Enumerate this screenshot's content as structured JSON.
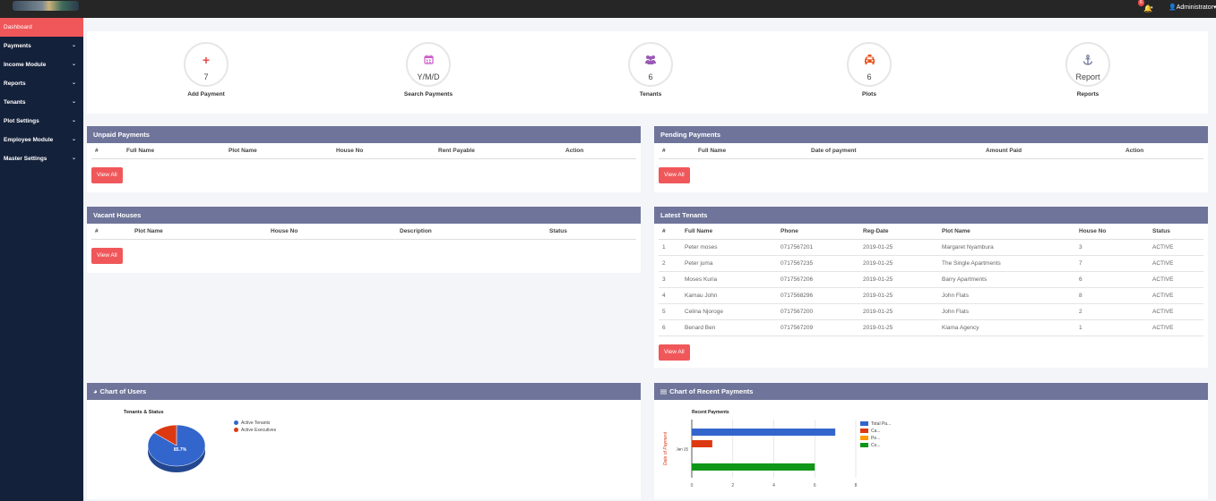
{
  "header": {
    "notif_count": "6",
    "notif_icon": "bell-icon",
    "user_label": "Administrator"
  },
  "sidebar": {
    "items": [
      {
        "label": "Dashboard",
        "active": true
      },
      {
        "label": "Payments"
      },
      {
        "label": "Income Module"
      },
      {
        "label": "Reports"
      },
      {
        "label": "Tenants"
      },
      {
        "label": "Plot Settings"
      },
      {
        "label": "Employee Module"
      },
      {
        "label": "Master Settings"
      }
    ]
  },
  "stats": [
    {
      "value": "7",
      "label": "Add Payment",
      "icon": "plus-icon",
      "color": "#e8494d"
    },
    {
      "value": "Y/M/D",
      "label": "Search Payments",
      "icon": "calendar-icon",
      "color": "#cc5cc9"
    },
    {
      "value": "6",
      "label": "Tenants",
      "icon": "users-icon",
      "color": "#9b59b6"
    },
    {
      "value": "6",
      "label": "Plots",
      "icon": "taxi-icon",
      "color": "#e8521a"
    },
    {
      "value": "Report",
      "label": "Reports",
      "icon": "anchor-icon",
      "color": "#6f759a"
    }
  ],
  "unpaid": {
    "title": "Unpaid Payments",
    "headers": [
      "#",
      "Full Name",
      "Plot Name",
      "House No",
      "Rent Payable",
      "Action"
    ],
    "view_all": "View All"
  },
  "pending": {
    "title": "Pending Payments",
    "headers": [
      "#",
      "Full Name",
      "Date of payment",
      "Amount Paid",
      "Action"
    ],
    "view_all": "View All"
  },
  "vacant": {
    "title": "Vacant Houses",
    "headers": [
      "#",
      "Plot Name",
      "House No",
      "Description",
      "Status"
    ],
    "view_all": "View All"
  },
  "latest": {
    "title": "Latest Tenants",
    "headers": [
      "#",
      "Full Name",
      "Phone",
      "Reg-Date",
      "Plot Name",
      "House No",
      "Status"
    ],
    "rows": [
      [
        "1",
        "Peter moses",
        "0717567201",
        "2019-01-25",
        "Margaret Nyambura",
        "3",
        "ACTIVE"
      ],
      [
        "2",
        "Peter juma",
        "0717567235",
        "2019-01-25",
        "The Single Apartments",
        "7",
        "ACTIVE"
      ],
      [
        "3",
        "Moses Kuria",
        "0717567206",
        "2019-01-25",
        "Barry Apartments",
        "6",
        "ACTIVE"
      ],
      [
        "4",
        "Kamau John",
        "0717568296",
        "2019-01-25",
        "John Flats",
        "8",
        "ACTIVE"
      ],
      [
        "5",
        "Celina Njoroge",
        "0717567200",
        "2019-01-25",
        "John Flats",
        "2",
        "ACTIVE"
      ],
      [
        "6",
        "Benard Ben",
        "0717567209",
        "2019-01-25",
        "Kiama Agency",
        "1",
        "ACTIVE"
      ]
    ],
    "view_all": "View All"
  },
  "users_chart": {
    "panel_title": "Chart of Users",
    "icon": "pie-icon"
  },
  "payments_chart": {
    "panel_title": "Chart of Recent Payments",
    "icon": "bar-chart-icon"
  },
  "chart_data": [
    {
      "type": "pie",
      "title": "Tenants & Status",
      "labels": [
        "Active Tenants",
        "Active Executives"
      ],
      "values": [
        85.7,
        14.3
      ],
      "colors": [
        "#3366cc",
        "#dc3912"
      ],
      "slice_label": "85.7%",
      "legend": "right"
    },
    {
      "type": "bar",
      "orientation": "horizontal",
      "title": "Recent Payments",
      "ylabel": "Date of Payment",
      "categories": [
        "Jan 25"
      ],
      "series": [
        {
          "name": "Total Pa...",
          "values": [
            7
          ],
          "color": "#3366cc"
        },
        {
          "name": "Ca...",
          "values": [
            1
          ],
          "color": "#dc3912"
        },
        {
          "name": "Pe...",
          "values": [
            0
          ],
          "color": "#ff9900"
        },
        {
          "name": "Co...",
          "values": [
            6
          ],
          "color": "#109618"
        }
      ],
      "xlim": [
        0,
        8
      ],
      "xticks": [
        "0",
        "2",
        "4",
        "6",
        "8"
      ],
      "grid": true,
      "legend": "right"
    }
  ]
}
